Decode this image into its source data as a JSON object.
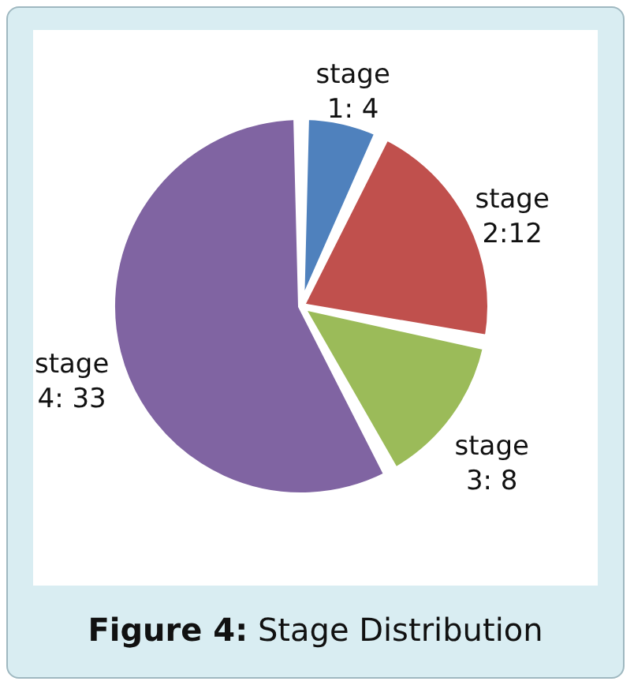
{
  "chart_data": {
    "type": "pie",
    "title": "Figure 4: Stage Distribution",
    "categories": [
      "stage 1: 4",
      "stage 2:12",
      "stage 3: 8",
      "stage 4: 33"
    ],
    "values": [
      4,
      12,
      8,
      33
    ],
    "colors": [
      "#4f81bd",
      "#c0504d",
      "#9bbb59",
      "#8064a2"
    ]
  }
}
